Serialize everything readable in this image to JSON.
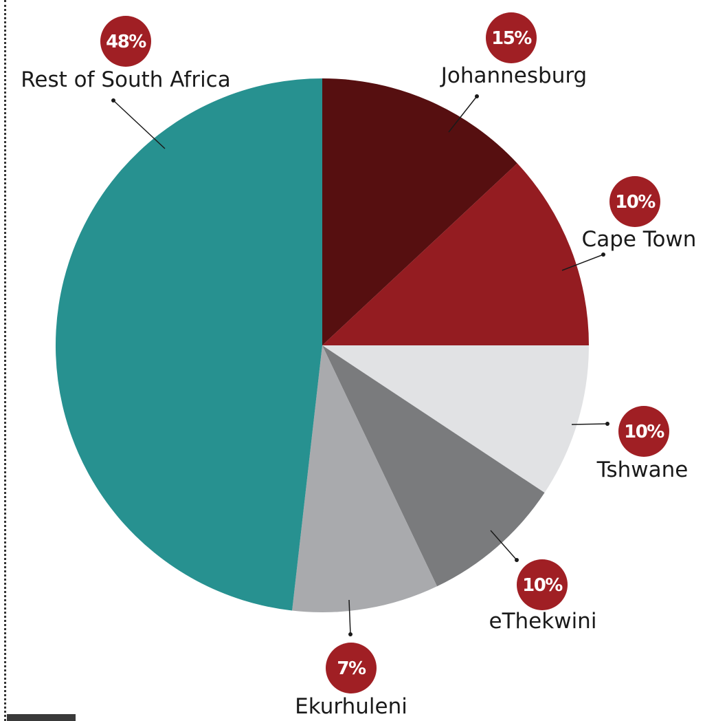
{
  "chart_data": {
    "type": "pie",
    "title": "",
    "slices": [
      {
        "name": "Johannesburg",
        "value": 15,
        "label": "15%",
        "color": "#560f10"
      },
      {
        "name": "Cape Town",
        "value": 10,
        "label": "10%",
        "color": "#941c21"
      },
      {
        "name": "Tshwane",
        "value": 10,
        "label": "10%",
        "color": "#e1e2e4"
      },
      {
        "name": "eThekwini",
        "value": 10,
        "label": "10%",
        "color": "#7a7b7d"
      },
      {
        "name": "Ekurhuleni",
        "value": 7,
        "label": "7%",
        "color": "#a9aaad"
      },
      {
        "name": "Rest of South Africa",
        "value": 48,
        "label": "48%",
        "color": "#279190"
      }
    ],
    "badge_color": "#a01f24"
  }
}
